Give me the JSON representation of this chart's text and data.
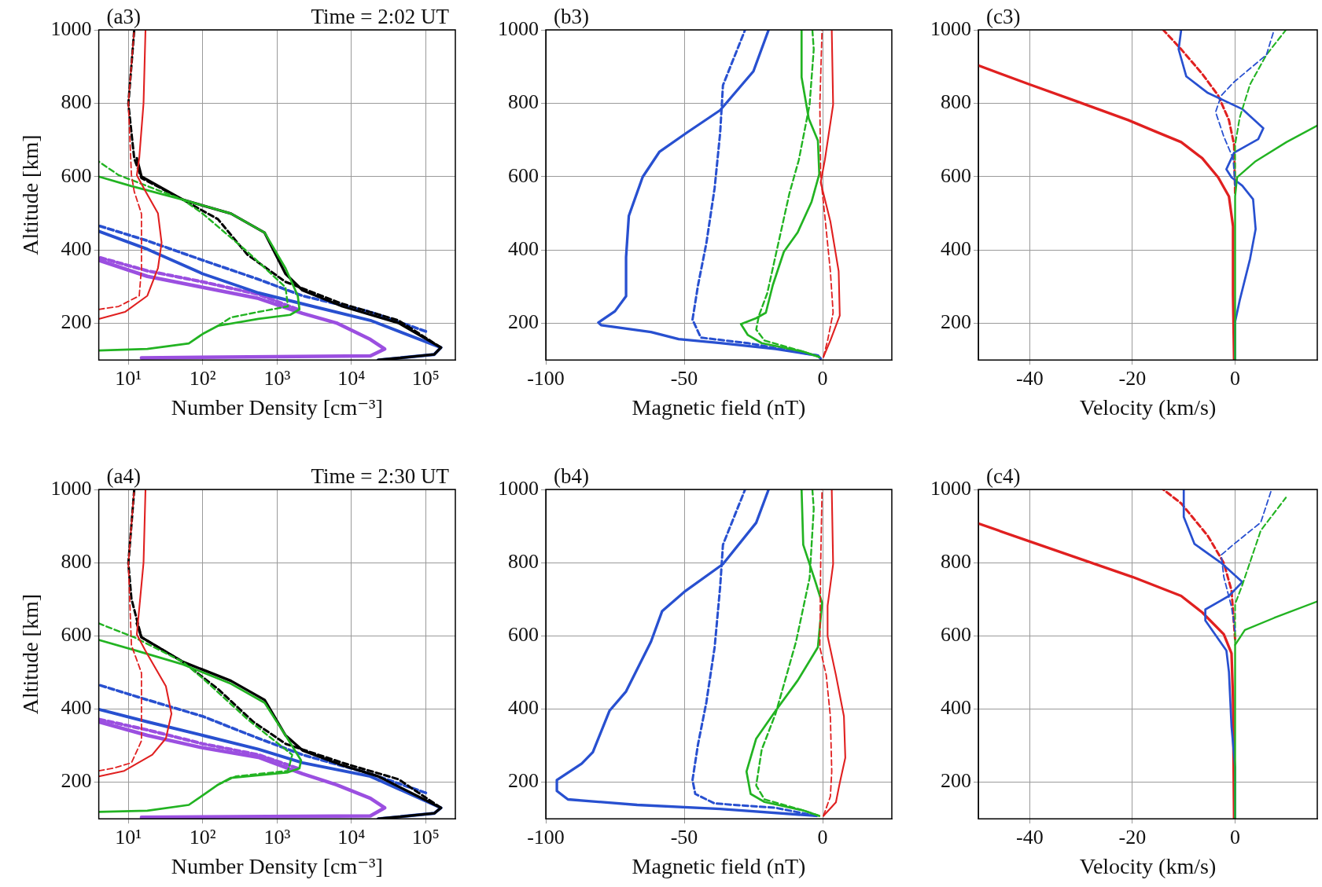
{
  "chart_data": [
    {
      "type": "line",
      "title": "(a3)",
      "subtitle": "Time = 2:02 UT",
      "xlabel": "Number Density [cm⁻³]",
      "ylabel": "Altitude [km]",
      "log": "x",
      "grid": true,
      "marker": "none",
      "xlim": [
        4,
        250000
      ],
      "xticks": [
        {
          "value": 10,
          "label": "10¹"
        },
        {
          "value": 100,
          "label": "10²"
        },
        {
          "value": 1000,
          "label": "10³"
        },
        {
          "value": 10000,
          "label": "10⁴"
        },
        {
          "value": 100000,
          "label": "10⁵"
        }
      ],
      "ylim": [
        100,
        1000
      ],
      "yticks": [
        200,
        400,
        600,
        800,
        1000
      ],
      "series": [
        {
          "color": "#9b4fe0",
          "x": [
            15,
            18000,
            28000,
            18000,
            6300,
            2200,
            560,
            100,
            18,
            4
          ],
          "values": [
            106,
            111,
            130,
            156,
            201,
            227,
            268,
            298,
            328,
            372
          ]
        },
        {
          "color": "#9b4fe0",
          "line_style": "dashed",
          "x": [
            1900,
            560,
            100,
            18,
            4
          ],
          "values": [
            238,
            279,
            313,
            343,
            380
          ]
        },
        {
          "color": "#2850d0",
          "x": [
            23000,
            130000,
            160000,
            18000,
            2200,
            560,
            100,
            18,
            4
          ],
          "values": [
            100,
            115,
            134,
            208,
            253,
            283,
            335,
            402,
            451
          ]
        },
        {
          "color": "#2850d0",
          "line_style": "dashed",
          "x": [
            100000,
            18000,
            2200,
            560,
            100,
            18,
            4
          ],
          "values": [
            178,
            231,
            275,
            320,
            372,
            425,
            466
          ]
        },
        {
          "color": "#000000",
          "x": [
            23000,
            130000,
            160000,
            43000,
            7600,
            2200,
            1300,
            680,
            240,
            54,
            15,
            13
          ],
          "values": [
            100,
            115,
            134,
            201,
            246,
            290,
            335,
            447,
            499,
            537,
            600,
            650
          ]
        },
        {
          "color": "#000000",
          "line_style": "dashed",
          "x": [
            160000,
            43000,
            7600,
            1300,
            400,
            160,
            54,
            15,
            12,
            10,
            12
          ],
          "values": [
            134,
            208,
            253,
            313,
            387,
            484,
            537,
            596,
            649,
            798,
            1000
          ]
        },
        {
          "color": "#22b322",
          "x": [
            4,
            18,
            65,
            100,
            160,
            560,
            1500,
            2000,
            1900,
            1300,
            680,
            240,
            54,
            11,
            4
          ],
          "values": [
            126,
            130,
            145,
            171,
            193,
            212,
            223,
            238,
            275,
            350,
            447,
            499,
            537,
            574,
            600
          ]
        },
        {
          "color": "#22b322",
          "line_style": "dashed",
          "x": [
            160,
            240,
            560,
            1400,
            1300,
            400,
            100,
            54,
            7.4,
            4
          ],
          "values": [
            193,
            216,
            231,
            246,
            298,
            395,
            499,
            537,
            604,
            641
          ]
        },
        {
          "color": "#e02020",
          "x": [
            4,
            9,
            18,
            25,
            28,
            25,
            17,
            13,
            14,
            16,
            17
          ],
          "values": [
            212,
            231,
            275,
            350,
            420,
            500,
            560,
            604,
            650,
            800,
            1000
          ]
        },
        {
          "color": "#e02020",
          "line_style": "dashed",
          "x": [
            4,
            7.4,
            14,
            15,
            15,
            12,
            11,
            10,
            12
          ],
          "values": [
            238,
            246,
            275,
            350,
            499,
            559,
            604,
            800,
            1000
          ]
        }
      ]
    },
    {
      "type": "line",
      "title": "(b3)",
      "xlabel": "Magnetic field (nT)",
      "grid": true,
      "marker": "none",
      "xlim": [
        -100,
        25
      ],
      "xticks": [
        -100,
        -50,
        0
      ],
      "ylim": [
        100,
        1000
      ],
      "yticks": [
        200,
        400,
        600,
        800,
        1000
      ],
      "series": [
        {
          "color": "#2850d0",
          "x": [
            -0.7,
            -1.7,
            -17,
            -37,
            -52,
            -62,
            -80,
            -81,
            -75,
            -71,
            -71,
            -70,
            -65,
            -59,
            -49,
            -37,
            -25,
            -19.5
          ],
          "values": [
            104,
            112,
            130,
            146,
            157,
            176,
            195,
            202,
            233,
            274,
            380,
            493,
            599,
            667,
            720,
            781,
            887,
            1000
          ]
        },
        {
          "color": "#2850d0",
          "line_style": "dashed",
          "x": [
            -1.7,
            -27,
            -44,
            -47,
            -45,
            -42,
            -39,
            -37,
            -36,
            -28
          ],
          "values": [
            112,
            146,
            161,
            210,
            304,
            418,
            569,
            720,
            849,
            1000
          ]
        },
        {
          "color": "#22b322",
          "x": [
            -1.2,
            -7,
            -22,
            -27,
            -29.5,
            -24,
            -20.5,
            -18,
            -14,
            -9,
            -4,
            -1.2,
            -1.7,
            -5,
            -7.6,
            -7.6
          ],
          "values": [
            108,
            123,
            146,
            168,
            198,
            214,
            229,
            304,
            395,
            448,
            531,
            607,
            698,
            758,
            871,
            1000
          ]
        },
        {
          "color": "#22b322",
          "line_style": "dashed",
          "x": [
            -1.2,
            -7,
            -21,
            -24,
            -23,
            -20,
            -16,
            -12,
            -8.6,
            -4.7,
            -3.2,
            -3.7
          ],
          "values": [
            108,
            123,
            153,
            183,
            221,
            282,
            418,
            554,
            645,
            796,
            947,
            1000
          ]
        },
        {
          "color": "#e02020",
          "x": [
            0.3,
            2.8,
            6.2,
            5.8,
            2.8,
            -0.7,
            0.8,
            3.8,
            3.3
          ],
          "values": [
            108,
            153,
            221,
            342,
            478,
            584,
            645,
            796,
            1000
          ]
        },
        {
          "color": "#e02020",
          "line_style": "dashed",
          "x": [
            0.3,
            1.8,
            3.8,
            2.8,
            0.8,
            -0.7,
            -1,
            -0.2
          ],
          "values": [
            108,
            153,
            229,
            342,
            493,
            599,
            796,
            1000
          ]
        }
      ]
    },
    {
      "type": "line",
      "title": "(c3)",
      "xlabel": "Velocity (km/s)",
      "grid": true,
      "marker": "none",
      "xlim": [
        -50,
        16
      ],
      "xticks": [
        -40,
        -20,
        0
      ],
      "ylim": [
        100,
        1000
      ],
      "yticks": [
        200,
        400,
        600,
        800,
        1000
      ],
      "series": [
        {
          "color": "#e02020",
          "x": [
            -0.2,
            -0.4,
            -0.4,
            -1.2,
            -3.3,
            -6.4,
            -10.5,
            -15.7,
            -20.8,
            -31,
            -40,
            -50
          ],
          "values": [
            102,
            278,
            464,
            546,
            598,
            650,
            694,
            724,
            754,
            806,
            851,
            903
          ]
        },
        {
          "color": "#e02020",
          "line_style": "dashed",
          "x": [
            0,
            -0.2,
            -1.2,
            -3.3,
            -6.4,
            -10.5,
            -14
          ],
          "values": [
            555,
            687,
            754,
            821,
            880,
            947,
            1000
          ]
        },
        {
          "color": "#2850d0",
          "x": [
            0,
            0,
            0.9,
            2.9,
            4,
            3.5,
            1.4,
            -0.7,
            -1.7,
            -0.2,
            4.5,
            5.5,
            1.4,
            -5.3,
            -9.5,
            -11,
            -10.5
          ],
          "values": [
            102,
            204,
            263,
            375,
            457,
            538,
            575,
            598,
            620,
            665,
            702,
            732,
            784,
            828,
            873,
            947,
            1000
          ]
        },
        {
          "color": "#22b322",
          "x": [
            0,
            0,
            0.4,
            4,
            10,
            16
          ],
          "values": [
            102,
            546,
            598,
            642,
            694,
            739
          ]
        },
        {
          "color": "#22b322",
          "line_style": "dashed",
          "x": [
            0,
            0,
            0.9,
            2.9,
            6.1,
            9.9
          ],
          "values": [
            575,
            687,
            761,
            851,
            932,
            1000
          ]
        },
        {
          "color": "#2850d0",
          "line_style": "dashed",
          "x": [
            0,
            -0.4,
            -2.2,
            -3.8,
            -2.7,
            -0.2,
            6.1,
            7.6
          ],
          "values": [
            575,
            650,
            709,
            776,
            821,
            858,
            932,
            1000
          ]
        }
      ]
    },
    {
      "type": "line",
      "title": "(a4)",
      "subtitle": "Time = 2:30 UT",
      "xlabel": "Number Density [cm⁻³]",
      "ylabel": "Altitude [km]",
      "log": "x",
      "grid": true,
      "marker": "none",
      "xlim": [
        4,
        250000
      ],
      "xticks": [
        {
          "value": 10,
          "label": "10¹"
        },
        {
          "value": 100,
          "label": "10²"
        },
        {
          "value": 1000,
          "label": "10³"
        },
        {
          "value": 10000,
          "label": "10⁴"
        },
        {
          "value": 100000,
          "label": "10⁵"
        }
      ],
      "ylim": [
        100,
        1000
      ],
      "yticks": [
        200,
        400,
        600,
        800,
        1000
      ],
      "series": [
        {
          "color": "#9b4fe0",
          "x": [
            15,
            18000,
            28000,
            18000,
            6300,
            2200,
            560,
            100,
            18,
            4
          ],
          "values": [
            104,
            108,
            130,
            156,
            193,
            223,
            268,
            294,
            328,
            365
          ]
        },
        {
          "color": "#9b4fe0",
          "line_style": "dashed",
          "x": [
            1900,
            560,
            100,
            18,
            4
          ],
          "values": [
            238,
            275,
            305,
            343,
            372
          ]
        },
        {
          "color": "#2850d0",
          "x": [
            23000,
            130000,
            160000,
            18000,
            2200,
            560,
            100,
            18,
            4
          ],
          "values": [
            100,
            115,
            130,
            216,
            253,
            290,
            328,
            365,
            399
          ]
        },
        {
          "color": "#2850d0",
          "line_style": "dashed",
          "x": [
            100000,
            18000,
            2200,
            560,
            100,
            18,
            4
          ],
          "values": [
            171,
            223,
            275,
            320,
            380,
            425,
            466
          ]
        },
        {
          "color": "#000000",
          "x": [
            23000,
            130000,
            160000,
            23000,
            7600,
            2200,
            1300,
            680,
            240,
            54,
            15,
            13
          ],
          "values": [
            100,
            115,
            130,
            216,
            246,
            287,
            328,
            425,
            477,
            529,
            596,
            634
          ]
        },
        {
          "color": "#000000",
          "line_style": "dashed",
          "x": [
            160000,
            43000,
            7600,
            1300,
            480,
            160,
            54,
            15,
            11,
            10,
            12
          ],
          "values": [
            130,
            208,
            253,
            305,
            365,
            455,
            529,
            596,
            701,
            798,
            1000
          ]
        },
        {
          "color": "#22b322",
          "x": [
            4,
            18,
            65,
            100,
            160,
            240,
            1400,
            2000,
            2100,
            1300,
            680,
            240,
            54,
            13,
            4
          ],
          "values": [
            119,
            122,
            138,
            164,
            193,
            212,
            227,
            238,
            260,
            328,
            417,
            469,
            522,
            559,
            589
          ]
        },
        {
          "color": "#22b322",
          "line_style": "dashed",
          "x": [
            160,
            280,
            1400,
            1600,
            400,
            100,
            54,
            12,
            4
          ],
          "values": [
            193,
            216,
            231,
            275,
            372,
            484,
            529,
            596,
            634
          ]
        },
        {
          "color": "#e02020",
          "x": [
            4,
            8.8,
            21,
            32,
            38,
            32,
            17,
            13,
            16,
            17
          ],
          "values": [
            216,
            231,
            275,
            320,
            387,
            462,
            559,
            604,
            800,
            1000
          ]
        },
        {
          "color": "#e02020",
          "line_style": "dashed",
          "x": [
            4,
            6.2,
            11,
            15,
            15,
            11,
            10,
            12
          ],
          "values": [
            231,
            238,
            253,
            313,
            499,
            574,
            798,
            1000
          ]
        }
      ]
    },
    {
      "type": "line",
      "title": "(b4)",
      "xlabel": "Magnetic field (nT)",
      "grid": true,
      "marker": "none",
      "xlim": [
        -100,
        25
      ],
      "xticks": [
        -100,
        -50,
        0
      ],
      "ylim": [
        100,
        1000
      ],
      "yticks": [
        200,
        400,
        600,
        800,
        1000
      ],
      "series": [
        {
          "color": "#2850d0",
          "x": [
            -2.2,
            -37,
            -67,
            -92,
            -96,
            -96,
            -87,
            -83,
            -77,
            -71,
            -62,
            -58,
            -50,
            -36,
            -24,
            -19.5
          ],
          "values": [
            108,
            127,
            138,
            153,
            176,
            206,
            251,
            282,
            395,
            448,
            584,
            667,
            720,
            796,
            909,
            1000
          ]
        },
        {
          "color": "#2850d0",
          "line_style": "dashed",
          "x": [
            -2.2,
            -17,
            -39,
            -46,
            -47,
            -45,
            -42,
            -39,
            -37,
            -36,
            -28
          ],
          "values": [
            108,
            130,
            142,
            168,
            206,
            304,
            418,
            569,
            735,
            849,
            1000
          ]
        },
        {
          "color": "#22b322",
          "x": [
            -1.2,
            -7,
            -21,
            -26,
            -27.5,
            -24,
            -17,
            -9,
            -1.7,
            -0.2,
            -2.7,
            -7,
            -7.6
          ],
          "values": [
            108,
            123,
            146,
            168,
            229,
            319,
            395,
            478,
            569,
            690,
            750,
            849,
            1000
          ]
        },
        {
          "color": "#22b322",
          "line_style": "dashed",
          "x": [
            -1.2,
            -7,
            -21,
            -24,
            -22,
            -17,
            -13,
            -9.6,
            -4.7,
            -3.2,
            -3.7
          ],
          "values": [
            108,
            123,
            153,
            191,
            289,
            387,
            493,
            584,
            758,
            947,
            1000
          ]
        },
        {
          "color": "#e02020",
          "x": [
            0.3,
            4.8,
            6.2,
            8.2,
            7.7,
            4.8,
            1.8,
            1.8,
            3.8,
            3.3
          ],
          "values": [
            108,
            145,
            198,
            267,
            380,
            493,
            599,
            682,
            796,
            1000
          ]
        },
        {
          "color": "#e02020",
          "line_style": "dashed",
          "x": [
            0.3,
            2.8,
            3.3,
            2.8,
            1.3,
            -1,
            -0.7,
            -0.2
          ],
          "values": [
            108,
            161,
            229,
            380,
            493,
            569,
            796,
            1000
          ]
        }
      ]
    },
    {
      "type": "line",
      "title": "(c4)",
      "xlabel": "Velocity (km/s)",
      "grid": true,
      "marker": "none",
      "xlim": [
        -50,
        16
      ],
      "xticks": [
        -40,
        -20,
        0
      ],
      "ylim": [
        100,
        1000
      ],
      "yticks": [
        200,
        400,
        600,
        800,
        1000
      ],
      "series": [
        {
          "color": "#e02020",
          "x": [
            -0.2,
            -0.4,
            -0.7,
            -2.2,
            -6.4,
            -10.5,
            -20,
            -40,
            -50
          ],
          "values": [
            102,
            425,
            552,
            604,
            664,
            709,
            761,
            858,
            907
          ]
        },
        {
          "color": "#e02020",
          "line_style": "dashed",
          "x": [
            0,
            -0.7,
            -2.2,
            -5.3,
            -10.5,
            -14
          ],
          "values": [
            590,
            724,
            799,
            873,
            962,
            1000
          ]
        },
        {
          "color": "#2850d0",
          "x": [
            0,
            0,
            -0.7,
            -1.2,
            -1.7,
            -5.8,
            -5.8,
            -1.2,
            1.4,
            -2.7,
            -7.9,
            -10,
            -10
          ],
          "values": [
            102,
            241,
            352,
            501,
            560,
            642,
            672,
            709,
            747,
            799,
            851,
            925,
            1000
          ]
        },
        {
          "color": "#22b322",
          "x": [
            0,
            0,
            1.9,
            7.6,
            16
          ],
          "values": [
            102,
            575,
            616,
            649,
            694
          ]
        },
        {
          "color": "#22b322",
          "line_style": "dashed",
          "x": [
            0,
            0,
            1.4,
            5,
            9.9
          ],
          "values": [
            575,
            687,
            739,
            888,
            978
          ]
        },
        {
          "color": "#2850d0",
          "line_style": "dashed",
          "x": [
            0,
            -0.7,
            -2.2,
            -2.7,
            -0.2,
            5,
            7.1
          ],
          "values": [
            613,
            679,
            761,
            821,
            851,
            910,
            1000
          ]
        }
      ]
    }
  ]
}
